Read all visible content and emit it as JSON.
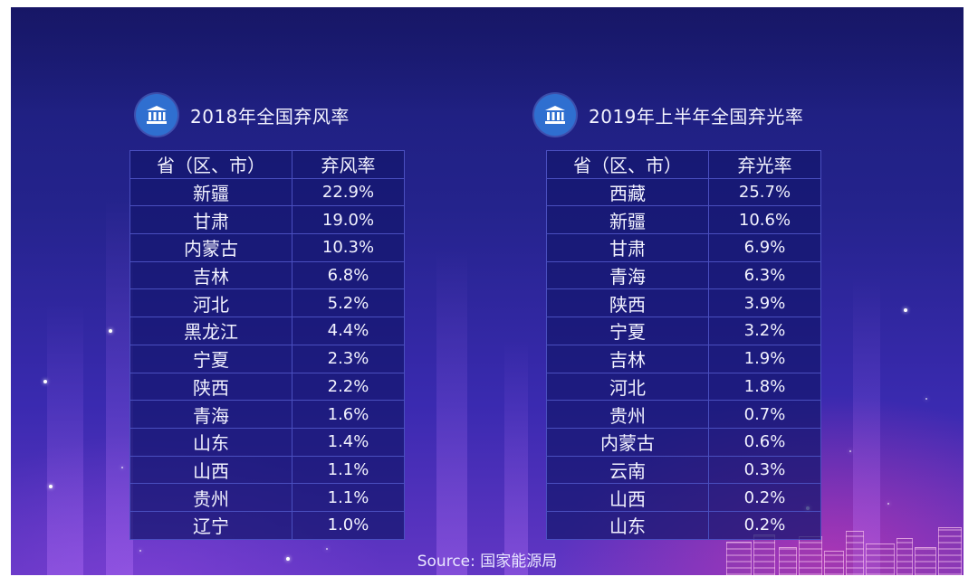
{
  "left_panel": {
    "title": "2018年全国弃风率",
    "icon": "government-building-icon",
    "header": {
      "region": "省（区、市）",
      "rate": "弃风率"
    },
    "rows": [
      {
        "region": "新疆",
        "rate": "22.9%"
      },
      {
        "region": "甘肃",
        "rate": "19.0%"
      },
      {
        "region": "内蒙古",
        "rate": "10.3%"
      },
      {
        "region": "吉林",
        "rate": "6.8%"
      },
      {
        "region": "河北",
        "rate": "5.2%"
      },
      {
        "region": "黑龙江",
        "rate": "4.4%"
      },
      {
        "region": "宁夏",
        "rate": "2.3%"
      },
      {
        "region": "陕西",
        "rate": "2.2%"
      },
      {
        "region": "青海",
        "rate": "1.6%"
      },
      {
        "region": "山东",
        "rate": "1.4%"
      },
      {
        "region": "山西",
        "rate": "1.1%"
      },
      {
        "region": "贵州",
        "rate": "1.1%"
      },
      {
        "region": "辽宁",
        "rate": "1.0%"
      }
    ]
  },
  "right_panel": {
    "title": "2019年上半年全国弃光率",
    "icon": "government-building-icon",
    "header": {
      "region": "省（区、市）",
      "rate": "弃光率"
    },
    "rows": [
      {
        "region": "西藏",
        "rate": "25.7%"
      },
      {
        "region": "新疆",
        "rate": "10.6%"
      },
      {
        "region": "甘肃",
        "rate": "6.9%"
      },
      {
        "region": "青海",
        "rate": "6.3%"
      },
      {
        "region": "陕西",
        "rate": "3.9%"
      },
      {
        "region": "宁夏",
        "rate": "3.2%"
      },
      {
        "region": "吉林",
        "rate": "1.9%"
      },
      {
        "region": "河北",
        "rate": "1.8%"
      },
      {
        "region": "贵州",
        "rate": "0.7%"
      },
      {
        "region": "内蒙古",
        "rate": "0.6%"
      },
      {
        "region": "云南",
        "rate": "0.3%"
      },
      {
        "region": "山西",
        "rate": "0.2%"
      },
      {
        "region": "山东",
        "rate": "0.2%"
      }
    ]
  },
  "source": "Source: 国家能源局",
  "colors": {
    "background_top": "#1b1d78",
    "background_bottom": "#6236c4",
    "badge": "#2f6fd0",
    "table_border": "#4a4fbf",
    "accent_glow": "#e937aa"
  }
}
